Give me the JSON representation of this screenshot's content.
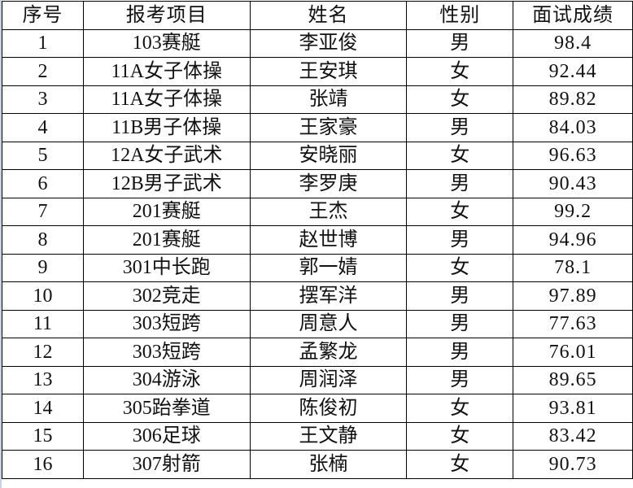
{
  "headers": [
    "序号",
    "报考项目",
    "姓名",
    "性别",
    "面试成绩"
  ],
  "rows": [
    [
      "1",
      "103赛艇",
      "李亚俊",
      "男",
      "98.4"
    ],
    [
      "2",
      "11A女子体操",
      "王安琪",
      "女",
      "92.44"
    ],
    [
      "3",
      "11A女子体操",
      "张靖",
      "女",
      "89.82"
    ],
    [
      "4",
      "11B男子体操",
      "王家豪",
      "男",
      "84.03"
    ],
    [
      "5",
      "12A女子武术",
      "安晓丽",
      "女",
      "96.63"
    ],
    [
      "6",
      "12B男子武术",
      "李罗庚",
      "男",
      "90.43"
    ],
    [
      "7",
      "201赛艇",
      "王杰",
      "女",
      "99.2"
    ],
    [
      "8",
      "201赛艇",
      "赵世博",
      "男",
      "94.96"
    ],
    [
      "9",
      "301中长跑",
      "郭一婧",
      "女",
      "78.1"
    ],
    [
      "10",
      "302竞走",
      "摆军洋",
      "男",
      "97.89"
    ],
    [
      "11",
      "303短跨",
      "周意人",
      "男",
      "77.63"
    ],
    [
      "12",
      "303短跨",
      "孟繁龙",
      "男",
      "76.01"
    ],
    [
      "13",
      "304游泳",
      "周润泽",
      "男",
      "89.65"
    ],
    [
      "14",
      "305跆拳道",
      "陈俊初",
      "女",
      "93.81"
    ],
    [
      "15",
      "306足球",
      "王文静",
      "女",
      "83.42"
    ],
    [
      "16",
      "307射箭",
      "张楠",
      "女",
      "90.73"
    ]
  ]
}
